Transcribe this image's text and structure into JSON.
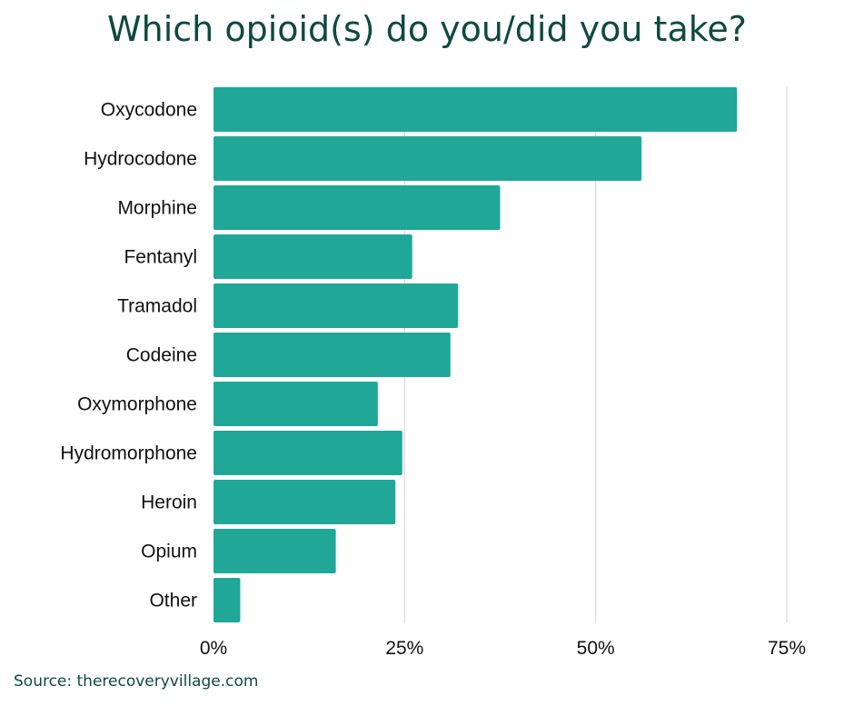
{
  "chart_data": {
    "type": "bar",
    "orientation": "horizontal",
    "title": "Which opioid(s) do you/did you take?",
    "categories": [
      "Oxycodone",
      "Hydrocodone",
      "Morphine",
      "Fentanyl",
      "Tramadol",
      "Codeine",
      "Oxymorphone",
      "Hydromorphone",
      "Heroin",
      "Opium",
      "Other"
    ],
    "values": [
      68.5,
      56,
      37.5,
      26,
      32,
      31,
      21.5,
      24.7,
      23.8,
      16,
      3.5
    ],
    "xlim": [
      0,
      75
    ],
    "xticks": [
      0,
      25,
      50,
      75
    ],
    "xtick_labels": [
      "0%",
      "25%",
      "50%",
      "75%"
    ],
    "xlabel": "",
    "ylabel": "",
    "grid": "vertical",
    "legend": "none",
    "bar_color": "#20a798",
    "grid_color": "#d9d9d9",
    "title_color": "#0e4a3f",
    "label_color": "#111111"
  },
  "source": "Source: therecoveryvillage.com"
}
